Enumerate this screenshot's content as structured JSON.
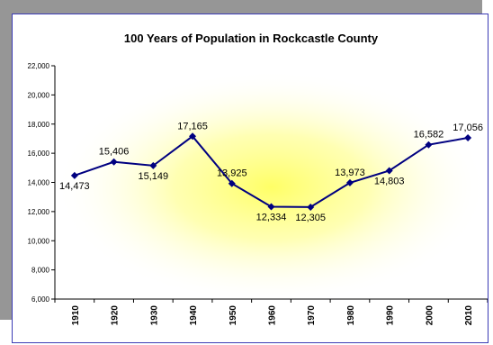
{
  "chart_data": {
    "type": "line",
    "title": "100 Years of Population in Rockcastle County",
    "xlabel": "",
    "ylabel": "",
    "categories": [
      "1910",
      "1920",
      "1930",
      "1940",
      "1950",
      "1960",
      "1970",
      "1980",
      "1990",
      "2000",
      "2010"
    ],
    "series": [
      {
        "values": [
          14473,
          15406,
          15149,
          17165,
          13925,
          12334,
          12305,
          13973,
          14803,
          16582,
          17056
        ],
        "labels": [
          "14,473",
          "15,406",
          "15,149",
          "17,165",
          "13,925",
          "12,334",
          "12,305",
          "13,973",
          "14,803",
          "16,582",
          "17,056"
        ],
        "label_placement": [
          "below",
          "above",
          "below",
          "above",
          "above",
          "below",
          "below",
          "above",
          "below",
          "above",
          "above"
        ]
      }
    ],
    "ylim": [
      6000,
      22000
    ],
    "yticks": [
      6000,
      8000,
      10000,
      12000,
      14000,
      16000,
      18000,
      20000,
      22000
    ],
    "ytick_labels": [
      "6,000",
      "8,000",
      "10,000",
      "12,000",
      "14,000",
      "16,000",
      "18,000",
      "20,000",
      "22,000"
    ],
    "grid": false,
    "legend": "none",
    "colors": {
      "line": "#000080",
      "plot_glow": "#ffff66",
      "frame_border": "#3b3bb5",
      "shadow": "#969696"
    }
  }
}
